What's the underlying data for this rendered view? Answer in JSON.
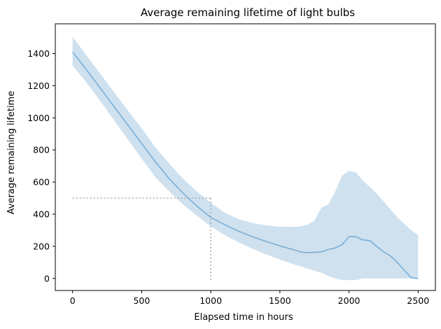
{
  "chart_data": {
    "type": "line",
    "title": "Average remaining lifetime of light bulbs",
    "xlabel": "Elapsed time in hours",
    "ylabel": "Average remaining lifetime",
    "xlim": [
      -125,
      2625
    ],
    "ylim": [
      -75,
      1585
    ],
    "xticks": [
      0,
      500,
      1000,
      1500,
      2000,
      2500
    ],
    "yticks": [
      0,
      200,
      400,
      600,
      800,
      1000,
      1200,
      1400
    ],
    "grid": false,
    "colors": {
      "line": "#7aaed6",
      "band": "#cfe1ef",
      "reference": "#aaaaaa"
    },
    "reference_point": {
      "x": 1000,
      "y": 500
    },
    "series": [
      {
        "x": [
          0,
          100,
          200,
          300,
          400,
          500,
          600,
          700,
          800,
          900,
          1000,
          1100,
          1200,
          1300,
          1400,
          1500,
          1600,
          1650,
          1700,
          1750,
          1800,
          1850,
          1900,
          1950,
          2000,
          2050,
          2100,
          2150,
          2200,
          2250,
          2300,
          2350,
          2400,
          2450,
          2500
        ],
        "y": [
          1410,
          1300,
          1185,
          1070,
          955,
          840,
          725,
          620,
          530,
          450,
          380,
          335,
          295,
          260,
          230,
          203,
          178,
          165,
          160,
          163,
          165,
          180,
          190,
          210,
          260,
          260,
          240,
          235,
          200,
          165,
          140,
          100,
          50,
          5,
          0
        ],
        "lower": [
          1325,
          1220,
          1105,
          985,
          865,
          745,
          630,
          540,
          460,
          390,
          325,
          270,
          225,
          185,
          150,
          118,
          88,
          75,
          62,
          48,
          35,
          15,
          0,
          -10,
          -10,
          -10,
          0,
          0,
          0,
          0,
          0,
          0,
          0,
          0,
          0
        ],
        "upper": [
          1505,
          1390,
          1275,
          1160,
          1045,
          935,
          815,
          715,
          620,
          540,
          470,
          410,
          370,
          345,
          330,
          323,
          320,
          325,
          335,
          360,
          440,
          460,
          540,
          640,
          670,
          660,
          610,
          570,
          530,
          480,
          430,
          380,
          340,
          300,
          270
        ]
      }
    ]
  }
}
